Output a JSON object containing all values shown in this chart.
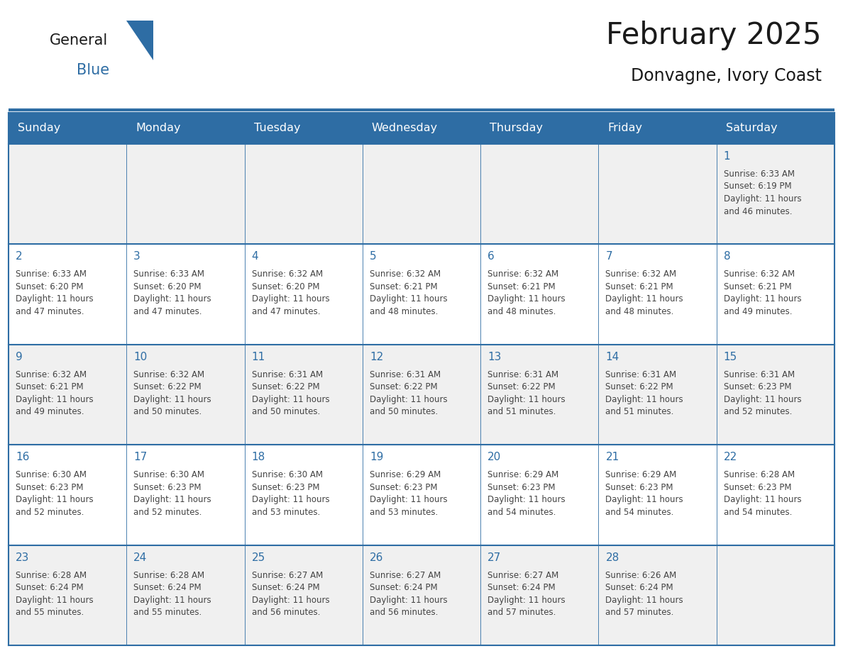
{
  "title": "February 2025",
  "subtitle": "Donvagne, Ivory Coast",
  "header_bg": "#2e6da4",
  "header_text_color": "#ffffff",
  "cell_bg_odd": "#f0f0f0",
  "cell_bg_even": "#ffffff",
  "grid_line_color": "#2e6da4",
  "day_number_color": "#2e6da4",
  "info_text_color": "#444444",
  "day_headers": [
    "Sunday",
    "Monday",
    "Tuesday",
    "Wednesday",
    "Thursday",
    "Friday",
    "Saturday"
  ],
  "calendar_data": [
    [
      null,
      null,
      null,
      null,
      null,
      null,
      {
        "day": 1,
        "sunrise": "6:33 AM",
        "sunset": "6:19 PM",
        "daylight": "11 hours\nand 46 minutes."
      }
    ],
    [
      {
        "day": 2,
        "sunrise": "6:33 AM",
        "sunset": "6:20 PM",
        "daylight": "11 hours\nand 47 minutes."
      },
      {
        "day": 3,
        "sunrise": "6:33 AM",
        "sunset": "6:20 PM",
        "daylight": "11 hours\nand 47 minutes."
      },
      {
        "day": 4,
        "sunrise": "6:32 AM",
        "sunset": "6:20 PM",
        "daylight": "11 hours\nand 47 minutes."
      },
      {
        "day": 5,
        "sunrise": "6:32 AM",
        "sunset": "6:21 PM",
        "daylight": "11 hours\nand 48 minutes."
      },
      {
        "day": 6,
        "sunrise": "6:32 AM",
        "sunset": "6:21 PM",
        "daylight": "11 hours\nand 48 minutes."
      },
      {
        "day": 7,
        "sunrise": "6:32 AM",
        "sunset": "6:21 PM",
        "daylight": "11 hours\nand 48 minutes."
      },
      {
        "day": 8,
        "sunrise": "6:32 AM",
        "sunset": "6:21 PM",
        "daylight": "11 hours\nand 49 minutes."
      }
    ],
    [
      {
        "day": 9,
        "sunrise": "6:32 AM",
        "sunset": "6:21 PM",
        "daylight": "11 hours\nand 49 minutes."
      },
      {
        "day": 10,
        "sunrise": "6:32 AM",
        "sunset": "6:22 PM",
        "daylight": "11 hours\nand 50 minutes."
      },
      {
        "day": 11,
        "sunrise": "6:31 AM",
        "sunset": "6:22 PM",
        "daylight": "11 hours\nand 50 minutes."
      },
      {
        "day": 12,
        "sunrise": "6:31 AM",
        "sunset": "6:22 PM",
        "daylight": "11 hours\nand 50 minutes."
      },
      {
        "day": 13,
        "sunrise": "6:31 AM",
        "sunset": "6:22 PM",
        "daylight": "11 hours\nand 51 minutes."
      },
      {
        "day": 14,
        "sunrise": "6:31 AM",
        "sunset": "6:22 PM",
        "daylight": "11 hours\nand 51 minutes."
      },
      {
        "day": 15,
        "sunrise": "6:31 AM",
        "sunset": "6:23 PM",
        "daylight": "11 hours\nand 52 minutes."
      }
    ],
    [
      {
        "day": 16,
        "sunrise": "6:30 AM",
        "sunset": "6:23 PM",
        "daylight": "11 hours\nand 52 minutes."
      },
      {
        "day": 17,
        "sunrise": "6:30 AM",
        "sunset": "6:23 PM",
        "daylight": "11 hours\nand 52 minutes."
      },
      {
        "day": 18,
        "sunrise": "6:30 AM",
        "sunset": "6:23 PM",
        "daylight": "11 hours\nand 53 minutes."
      },
      {
        "day": 19,
        "sunrise": "6:29 AM",
        "sunset": "6:23 PM",
        "daylight": "11 hours\nand 53 minutes."
      },
      {
        "day": 20,
        "sunrise": "6:29 AM",
        "sunset": "6:23 PM",
        "daylight": "11 hours\nand 54 minutes."
      },
      {
        "day": 21,
        "sunrise": "6:29 AM",
        "sunset": "6:23 PM",
        "daylight": "11 hours\nand 54 minutes."
      },
      {
        "day": 22,
        "sunrise": "6:28 AM",
        "sunset": "6:23 PM",
        "daylight": "11 hours\nand 54 minutes."
      }
    ],
    [
      {
        "day": 23,
        "sunrise": "6:28 AM",
        "sunset": "6:24 PM",
        "daylight": "11 hours\nand 55 minutes."
      },
      {
        "day": 24,
        "sunrise": "6:28 AM",
        "sunset": "6:24 PM",
        "daylight": "11 hours\nand 55 minutes."
      },
      {
        "day": 25,
        "sunrise": "6:27 AM",
        "sunset": "6:24 PM",
        "daylight": "11 hours\nand 56 minutes."
      },
      {
        "day": 26,
        "sunrise": "6:27 AM",
        "sunset": "6:24 PM",
        "daylight": "11 hours\nand 56 minutes."
      },
      {
        "day": 27,
        "sunrise": "6:27 AM",
        "sunset": "6:24 PM",
        "daylight": "11 hours\nand 57 minutes."
      },
      {
        "day": 28,
        "sunrise": "6:26 AM",
        "sunset": "6:24 PM",
        "daylight": "11 hours\nand 57 minutes."
      },
      null
    ]
  ],
  "logo_text1": "General",
  "logo_text2": "Blue",
  "logo_color1": "#1a1a1a",
  "logo_color2": "#2e6da4",
  "logo_triangle_color": "#2e6da4"
}
